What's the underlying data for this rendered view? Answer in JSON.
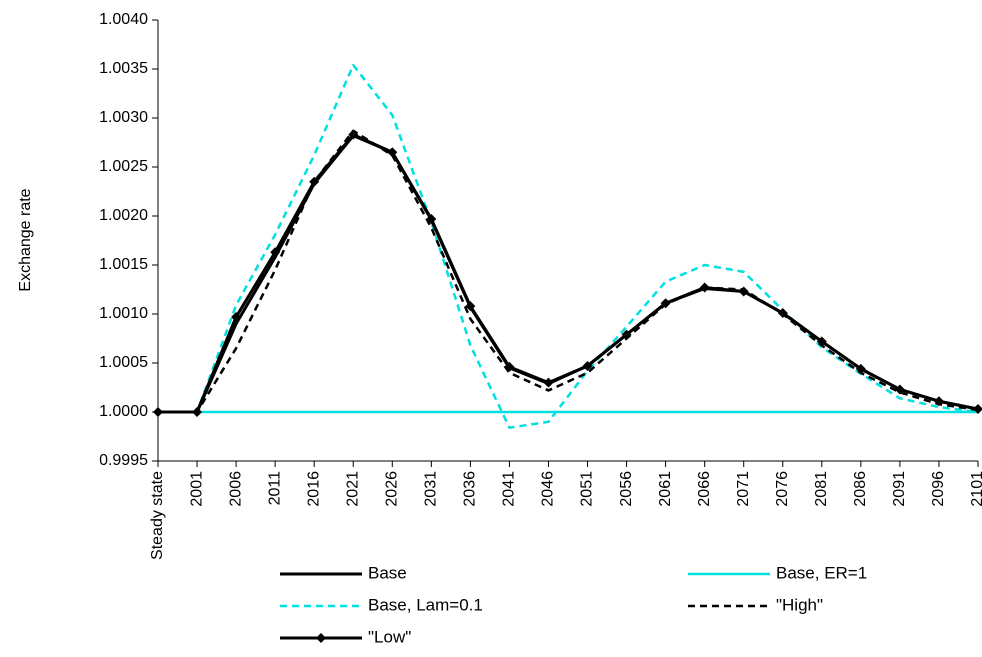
{
  "chart_data": {
    "type": "line",
    "y_label": "Exchange rate",
    "categories": [
      "Steady state",
      "2001",
      "2006",
      "2011",
      "2016",
      "2021",
      "2026",
      "2031",
      "2036",
      "2041",
      "2046",
      "2051",
      "2056",
      "2061",
      "2066",
      "2071",
      "2076",
      "2081",
      "2086",
      "2091",
      "2096",
      "2101"
    ],
    "ylim": [
      0.9995,
      1.004
    ],
    "yticks": [
      0.9995,
      {
        "value": 1.0,
        "label": "1.0000"
      },
      1.0005,
      {
        "value": 1.001,
        "label": "1.0010"
      },
      1.0015,
      {
        "value": 1.002,
        "label": "1.0020"
      },
      1.0025,
      {
        "value": 1.003,
        "label": "1.0030"
      },
      1.0035,
      {
        "value": 1.004,
        "label": "1.0040"
      }
    ],
    "grid": false,
    "legend": "bottom",
    "series": [
      {
        "name": "Base",
        "color": "#000000",
        "style": "solid",
        "marker": "none",
        "values": [
          1.0,
          1.0,
          1.0009,
          1.00158,
          1.00233,
          1.00282,
          1.00265,
          1.00196,
          1.00107,
          1.00045,
          1.00029,
          1.00047,
          1.00079,
          1.00111,
          1.00126,
          1.00123,
          1.00101,
          1.00072,
          1.00044,
          1.00023,
          1.00011,
          1.00003
        ]
      },
      {
        "name": "Base, ER=1",
        "color": "#00e0e0",
        "style": "solid",
        "marker": "none",
        "values": [
          1.0,
          1.0,
          1.0,
          1.0,
          1.0,
          1.0,
          1.0,
          1.0,
          1.0,
          1.0,
          1.0,
          1.0,
          1.0,
          1.0,
          1.0,
          1.0,
          1.0,
          1.0,
          1.0,
          1.0,
          1.0,
          1.0
        ]
      },
      {
        "name": "Base, Lam=0.1",
        "color": "#00e0e0",
        "style": "dashed",
        "marker": "none",
        "values": [
          1.0,
          1.0,
          1.00109,
          1.00181,
          1.00262,
          1.00354,
          1.00303,
          1.00194,
          1.00068,
          0.99984,
          0.9999,
          1.00042,
          1.00087,
          1.00133,
          1.0015,
          1.00143,
          1.00104,
          1.00066,
          1.00039,
          1.00014,
          1.00005,
          1.0
        ]
      },
      {
        "name": "\"High\"",
        "color": "#000000",
        "style": "dashed",
        "marker": "none",
        "values": [
          1.0,
          1.0,
          1.00065,
          1.00145,
          1.00235,
          1.00287,
          1.00262,
          1.00188,
          1.00095,
          1.0004,
          1.00022,
          1.0004,
          1.00075,
          1.0011,
          1.00127,
          1.00125,
          1.001,
          1.00068,
          1.0004,
          1.0002,
          1.00008,
          1.00002
        ]
      },
      {
        "name": "\"Low\"",
        "color": "#000000",
        "style": "solid",
        "marker": "diamond",
        "values": [
          1.0,
          1.0,
          1.00097,
          1.00163,
          1.00235,
          1.00283,
          1.00265,
          1.00197,
          1.00108,
          1.00046,
          1.0003,
          1.00047,
          1.00079,
          1.00111,
          1.00127,
          1.00123,
          1.00101,
          1.00072,
          1.00044,
          1.00023,
          1.00011,
          1.00003
        ]
      }
    ]
  }
}
